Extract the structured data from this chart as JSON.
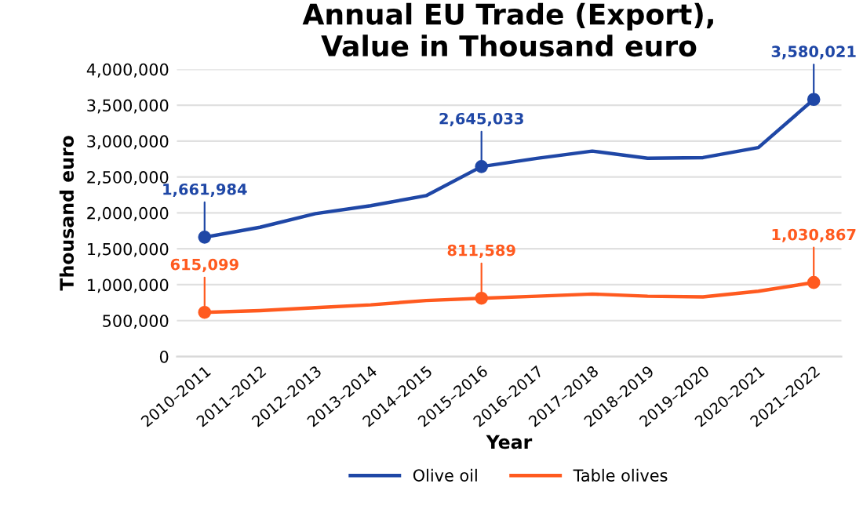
{
  "chart_data": {
    "type": "line",
    "title": "Annual EU Trade (Export),\nValue in Thousand euro",
    "xlabel": "Year",
    "ylabel": "Thousand euro",
    "categories": [
      "2010–2011",
      "2011–2012",
      "2012–2013",
      "2013–2014",
      "2014–2015",
      "2015–2016",
      "2016–2017",
      "2017–2018",
      "2018–2019",
      "2019–2020",
      "2020–2021",
      "2021–2022"
    ],
    "series": [
      {
        "name": "Olive oil",
        "color": "#1f47a6",
        "values": [
          1661984,
          1800000,
          1990000,
          2100000,
          2240000,
          2645033,
          2760000,
          2860000,
          2760000,
          2770000,
          2910000,
          3580021
        ],
        "value_labels": [
          "1,661,984",
          null,
          null,
          null,
          null,
          "2,645,033",
          null,
          null,
          null,
          null,
          null,
          "3,580,021"
        ]
      },
      {
        "name": "Table olives",
        "color": "#ff5a1f",
        "values": [
          615099,
          640000,
          680000,
          720000,
          780000,
          811589,
          840000,
          870000,
          840000,
          830000,
          910000,
          1030867
        ],
        "value_labels": [
          "615,099",
          null,
          null,
          null,
          null,
          "811,589",
          null,
          null,
          null,
          null,
          null,
          "1,030,867"
        ]
      }
    ],
    "ylim": [
      0,
      4000000
    ],
    "yticks": [
      {
        "value": 0,
        "label": "0"
      },
      {
        "value": 500000,
        "label": "500,000"
      },
      {
        "value": 1000000,
        "label": "1,000,000"
      },
      {
        "value": 1500000,
        "label": "1,500,000"
      },
      {
        "value": 2000000,
        "label": "2,000,000"
      },
      {
        "value": 2500000,
        "label": "2,500,000"
      },
      {
        "value": 3000000,
        "label": "3,000,000"
      },
      {
        "value": 3500000,
        "label": "3,500,000"
      },
      {
        "value": 4000000,
        "label": "4,000,000"
      }
    ],
    "grid": "y",
    "legend": "bottom",
    "line_style": "solid"
  }
}
